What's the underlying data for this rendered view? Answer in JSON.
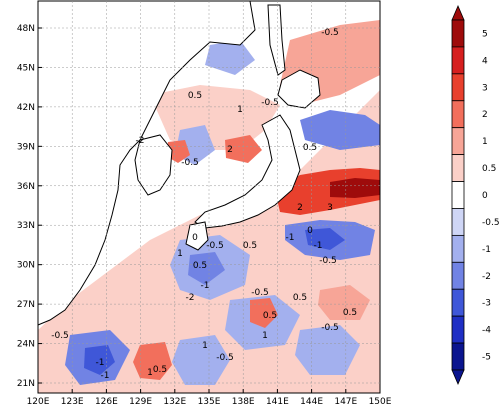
{
  "map": {
    "lon_ticks": [
      "120E",
      "123E",
      "126E",
      "129E",
      "132E",
      "135E",
      "138E",
      "141E",
      "144E",
      "147E",
      "150E"
    ],
    "lat_ticks": [
      "21N",
      "24N",
      "27N",
      "30N",
      "33N",
      "36N",
      "39N",
      "42N",
      "45N",
      "48N"
    ],
    "contour_labels": [
      "-0.5",
      "-1",
      "0.5",
      "1",
      "-2",
      "2",
      "3",
      "0",
      "-0.5",
      "1",
      "-1",
      "0.5",
      "0",
      "-0.5",
      "0.5",
      "-1",
      "-0.5",
      "-1",
      "-2",
      "-0.5",
      "-0.5",
      "0.5",
      "0.5",
      "1",
      "1",
      "-1",
      "0.5",
      "-0.5",
      "0.5",
      "-0.5",
      "0.5",
      "2",
      "-0.5",
      "1"
    ]
  },
  "colorbar": {
    "labels": [
      "5",
      "4",
      "3",
      "2",
      "1",
      "0.5",
      "0",
      "-0.5",
      "-1",
      "-2",
      "-3",
      "-4",
      "-5"
    ],
    "colors": [
      "#9e0b0b",
      "#d61f1f",
      "#e8402d",
      "#f26f5c",
      "#f7a597",
      "#fbd0c8",
      "#ffffff",
      "#cfd6f6",
      "#a3b0ee",
      "#7183e4",
      "#3f57d8",
      "#1f2fc4",
      "#0b158f"
    ]
  }
}
